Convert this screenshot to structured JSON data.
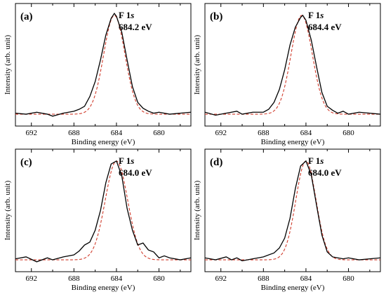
{
  "chart_data": [
    {
      "type": "line",
      "panel_label": "(a)",
      "annotation": [
        "F 1s",
        "684.2 eV"
      ],
      "xlabel": "Binding energy (eV)",
      "ylabel": "Intensity (arb. unit)",
      "xlim": [
        693.5,
        677
      ],
      "x_reversed": true,
      "x_ticks": [
        692,
        688,
        684,
        680
      ],
      "y_ticks": "none",
      "ylim": [
        -0.12,
        1.12
      ],
      "peak_position_eV": 684.2,
      "fit_model": {
        "center": 684.2,
        "sigma": 1.0,
        "baseline": 0.0
      },
      "series": [
        {
          "style": "measured",
          "color": "#000000",
          "x": [
            693.5,
            692.5,
            691.5,
            690.5,
            690.0,
            689.0,
            688.5,
            688.0,
            687.5,
            687.0,
            686.5,
            686.0,
            685.5,
            685.0,
            684.5,
            684.2,
            684.0,
            683.5,
            683.0,
            682.5,
            682.0,
            681.5,
            681.0,
            680.5,
            680.0,
            679.0,
            678.0,
            677.0
          ],
          "y": [
            0.01,
            0.0,
            0.02,
            0.0,
            -0.02,
            0.01,
            0.02,
            0.03,
            0.05,
            0.08,
            0.18,
            0.33,
            0.55,
            0.8,
            0.97,
            1.02,
            0.99,
            0.83,
            0.55,
            0.28,
            0.12,
            0.06,
            0.03,
            0.01,
            0.02,
            0.0,
            0.01,
            0.02
          ]
        },
        {
          "style": "fit",
          "color": "#d03a2a"
        }
      ]
    },
    {
      "type": "line",
      "panel_label": "(b)",
      "annotation": [
        "F 1s",
        "684.4 eV"
      ],
      "xlabel": "Binding energy (eV)",
      "ylabel": "Intensity (arb. unit)",
      "xlim": [
        693.5,
        677
      ],
      "x_reversed": true,
      "x_ticks": [
        692,
        688,
        684,
        680
      ],
      "y_ticks": "none",
      "ylim": [
        -0.12,
        1.12
      ],
      "peak_position_eV": 684.4,
      "fit_model": {
        "center": 684.4,
        "sigma": 1.0,
        "baseline": 0.0
      },
      "series": [
        {
          "style": "measured",
          "color": "#000000",
          "x": [
            693.5,
            692.5,
            691.5,
            690.5,
            690.0,
            689.0,
            688.0,
            687.5,
            687.0,
            686.5,
            686.0,
            685.5,
            685.0,
            684.5,
            684.3,
            684.0,
            683.5,
            683.0,
            682.5,
            682.0,
            681.5,
            681.0,
            680.5,
            680.0,
            679.0,
            678.0,
            677.0
          ],
          "y": [
            0.02,
            -0.01,
            0.01,
            0.03,
            0.0,
            0.02,
            0.02,
            0.05,
            0.12,
            0.25,
            0.45,
            0.7,
            0.88,
            0.98,
            1.0,
            0.95,
            0.75,
            0.48,
            0.22,
            0.08,
            0.04,
            0.01,
            0.03,
            0.0,
            0.02,
            0.01,
            0.0
          ]
        },
        {
          "style": "fit",
          "color": "#d03a2a"
        }
      ]
    },
    {
      "type": "line",
      "panel_label": "(c)",
      "annotation": [
        "F 1s",
        "684.0 eV"
      ],
      "xlabel": "Binding energy (eV)",
      "ylabel": "Intensity (arb. unit)",
      "xlim": [
        693.5,
        677
      ],
      "x_reversed": true,
      "x_ticks": [
        692,
        688,
        684,
        680
      ],
      "y_ticks": "none",
      "ylim": [
        -0.12,
        1.12
      ],
      "peak_position_eV": 684.0,
      "fit_model": {
        "center": 684.0,
        "sigma": 1.05,
        "baseline": 0.0
      },
      "series": [
        {
          "style": "measured",
          "color": "#000000",
          "x": [
            693.5,
            692.5,
            691.5,
            690.5,
            690.0,
            689.0,
            688.0,
            687.5,
            687.0,
            686.5,
            686.0,
            685.5,
            685.0,
            684.5,
            684.0,
            683.5,
            683.0,
            682.5,
            682.0,
            681.5,
            681.0,
            680.5,
            680.0,
            679.5,
            679.0,
            678.0,
            677.0
          ],
          "y": [
            0.01,
            0.03,
            -0.02,
            0.02,
            0.0,
            0.03,
            0.05,
            0.09,
            0.15,
            0.18,
            0.3,
            0.5,
            0.78,
            0.97,
            1.0,
            0.85,
            0.52,
            0.3,
            0.15,
            0.17,
            0.1,
            0.08,
            0.02,
            0.04,
            0.02,
            0.0,
            0.02
          ]
        },
        {
          "style": "fit",
          "color": "#d03a2a"
        }
      ]
    },
    {
      "type": "line",
      "panel_label": "(d)",
      "annotation": [
        "F 1s",
        "684.0 eV"
      ],
      "xlabel": "Binding energy (eV)",
      "ylabel": "Intensity (arb. unit)",
      "xlim": [
        693.5,
        677
      ],
      "x_reversed": true,
      "x_ticks": [
        692,
        688,
        684,
        680
      ],
      "y_ticks": "none",
      "ylim": [
        -0.12,
        1.12
      ],
      "peak_position_eV": 684.0,
      "fit_model": {
        "center": 684.0,
        "sigma": 0.95,
        "baseline": 0.0
      },
      "series": [
        {
          "style": "measured",
          "color": "#000000",
          "x": [
            693.5,
            692.5,
            691.5,
            691.0,
            690.5,
            690.0,
            689.0,
            688.0,
            687.0,
            686.5,
            686.0,
            685.5,
            685.0,
            684.5,
            684.0,
            683.5,
            683.0,
            682.5,
            682.0,
            681.5,
            681.0,
            680.5,
            680.0,
            679.0,
            678.0,
            677.0
          ],
          "y": [
            0.02,
            0.0,
            0.03,
            0.0,
            0.02,
            -0.01,
            0.01,
            0.03,
            0.07,
            0.12,
            0.22,
            0.42,
            0.72,
            0.95,
            1.0,
            0.86,
            0.55,
            0.25,
            0.08,
            0.03,
            0.02,
            0.01,
            0.02,
            0.0,
            0.01,
            0.02
          ]
        },
        {
          "style": "fit",
          "color": "#d03a2a"
        }
      ]
    }
  ]
}
